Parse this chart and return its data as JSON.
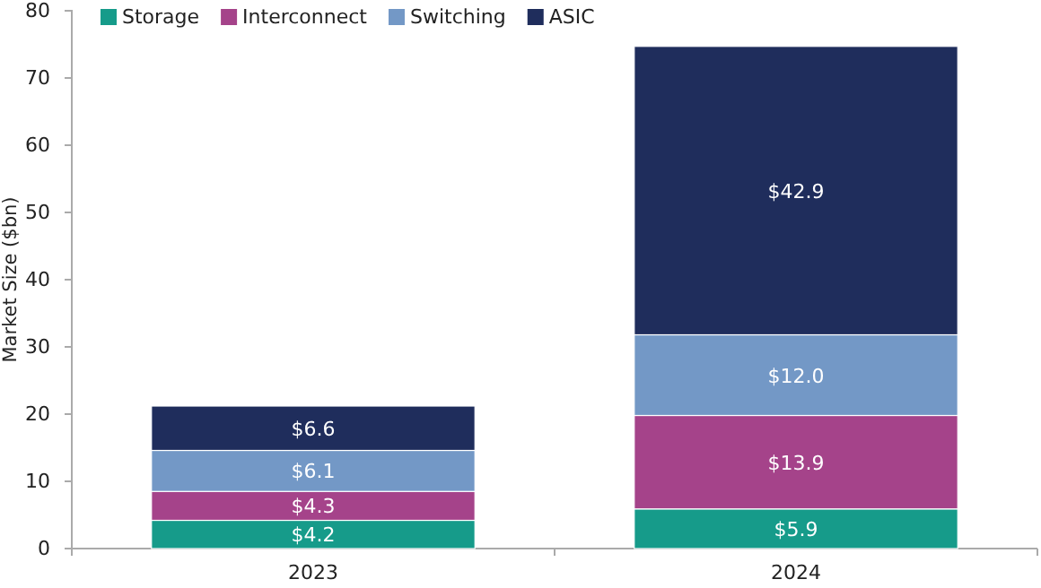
{
  "chart_data": {
    "type": "bar",
    "stacked": true,
    "ylabel": "Market Size ($bn)",
    "categories": [
      "2023",
      "2024"
    ],
    "series": [
      {
        "name": "Storage",
        "color": "#169b8a",
        "values": [
          4.2,
          5.9
        ],
        "value_labels": [
          "$4.2",
          "$5.9"
        ]
      },
      {
        "name": "Interconnect",
        "color": "#a5438a",
        "values": [
          4.3,
          13.9
        ],
        "value_labels": [
          "$4.3",
          "$13.9"
        ]
      },
      {
        "name": "Switching",
        "color": "#7398c6",
        "values": [
          6.1,
          12.0
        ],
        "value_labels": [
          "$6.1",
          "$12.0"
        ]
      },
      {
        "name": "ASIC",
        "color": "#1f2d5c",
        "values": [
          6.6,
          42.9
        ],
        "value_labels": [
          "$6.6",
          "$42.9"
        ]
      }
    ],
    "ylim": [
      0,
      80
    ],
    "yticks": [
      0,
      10,
      20,
      30,
      40,
      50,
      60,
      70,
      80
    ],
    "legend": "top left",
    "grid": false
  }
}
